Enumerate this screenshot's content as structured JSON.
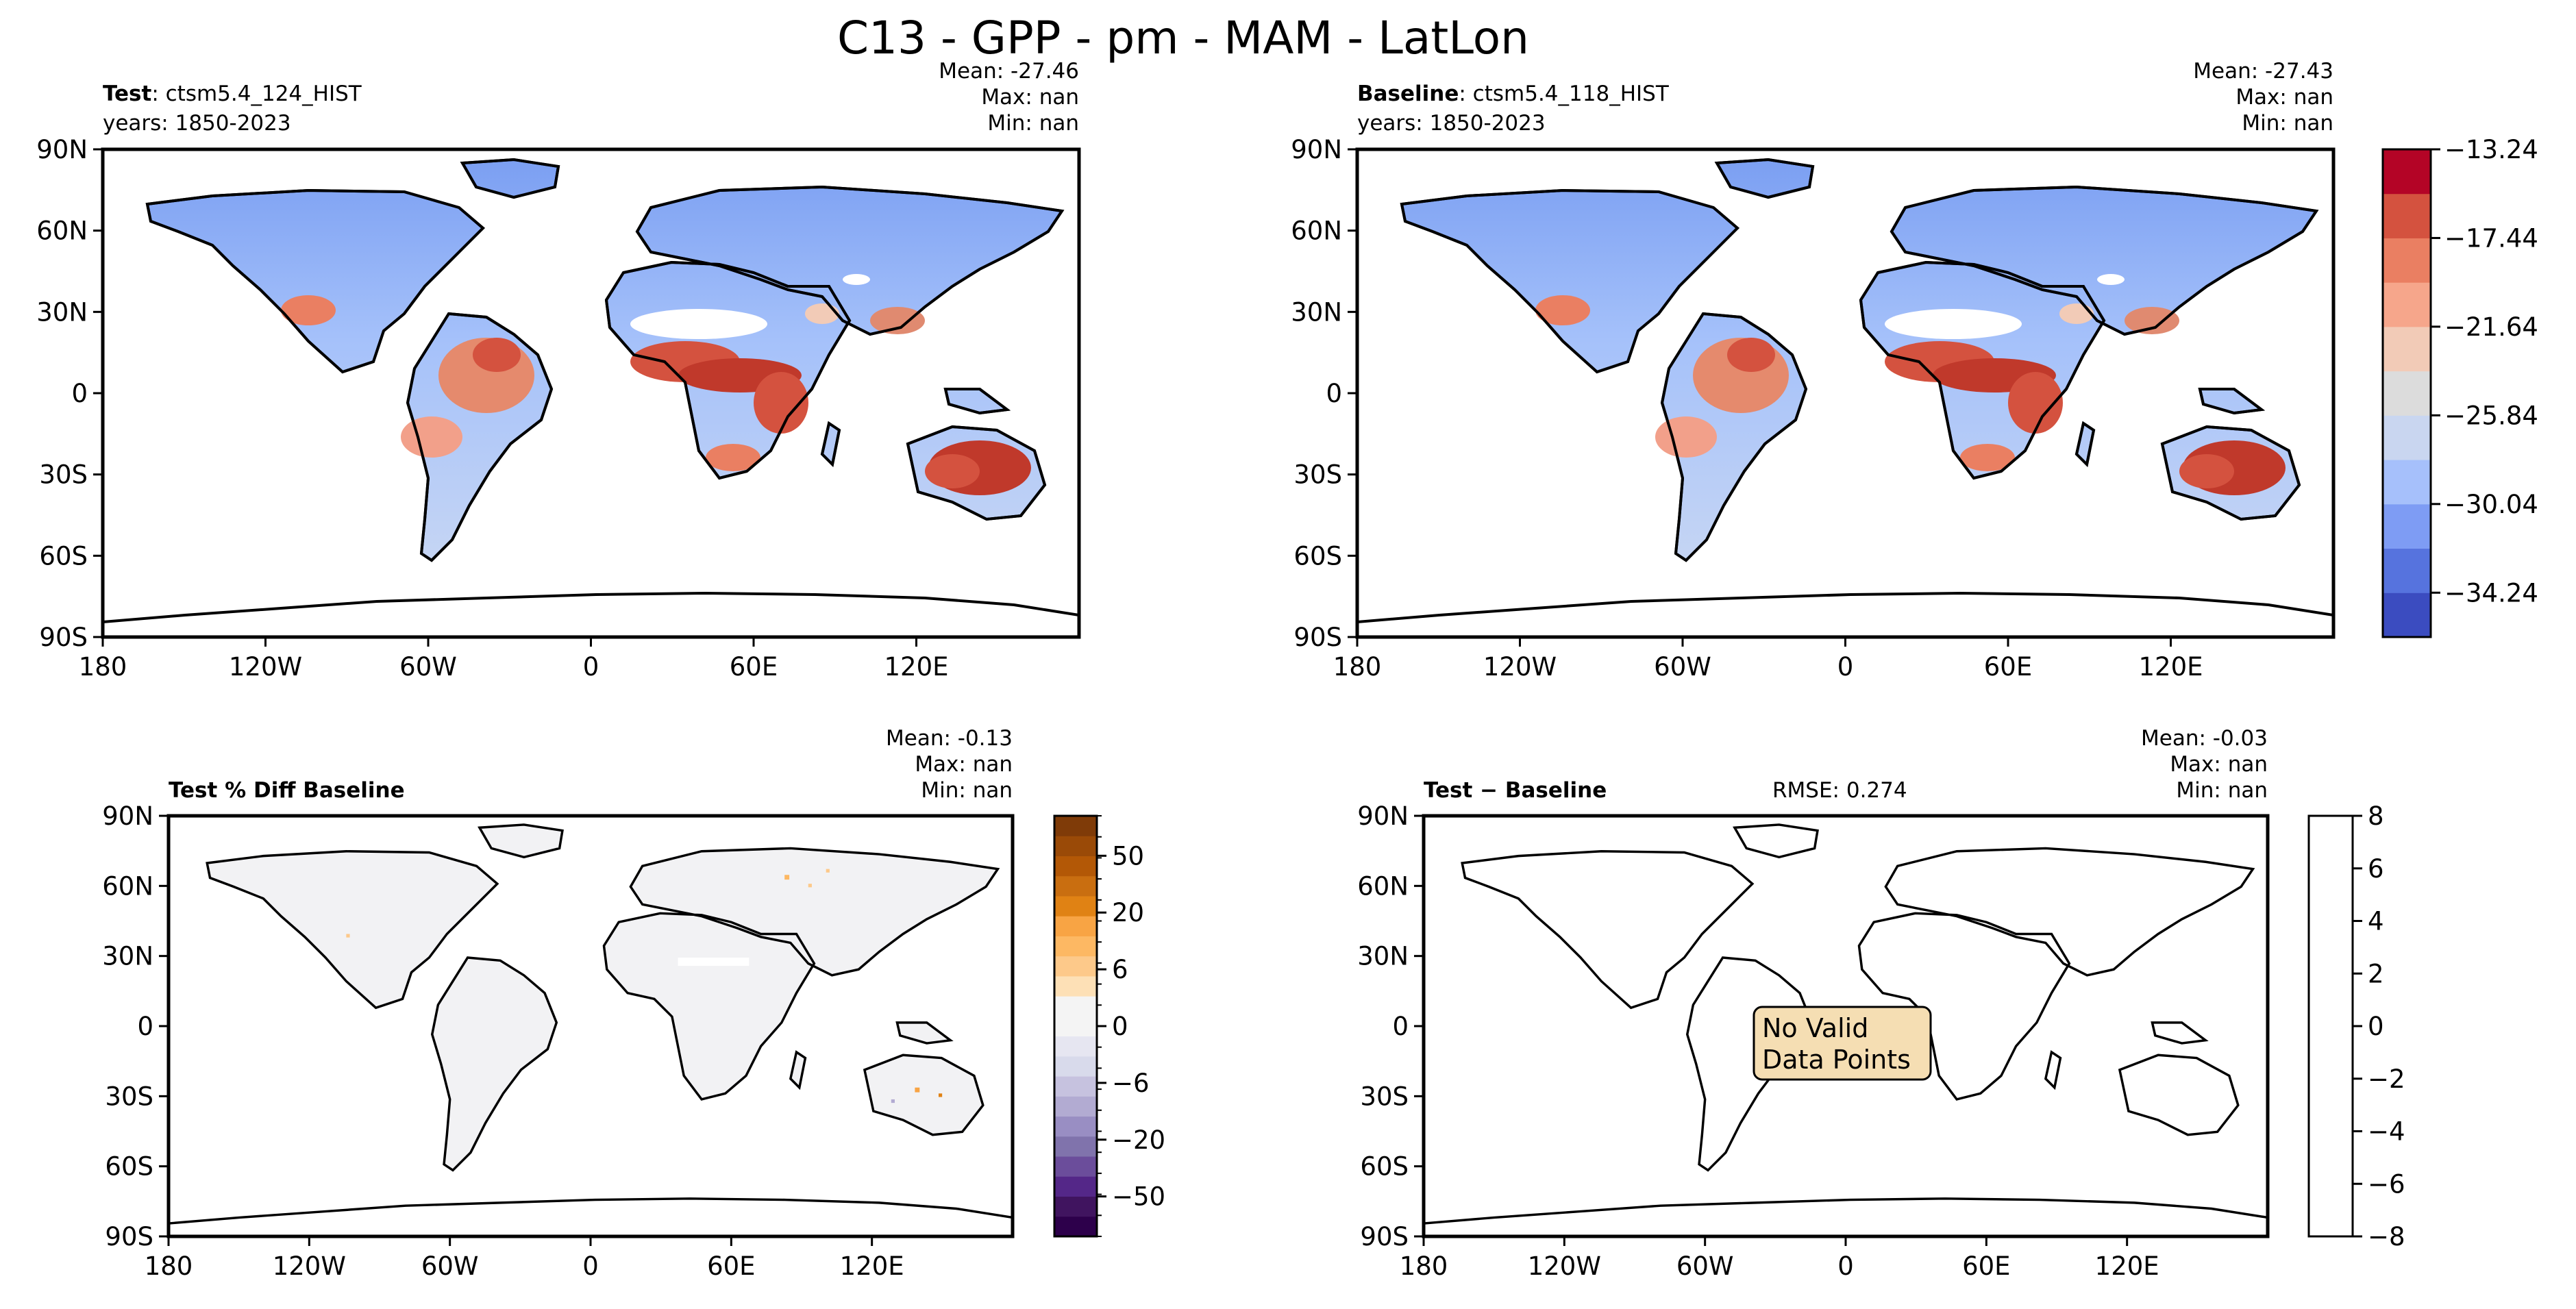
{
  "figure_title": "C13 - GPP - pm - MAM - LatLon",
  "lat_ticks": [
    "90N",
    "60N",
    "30N",
    "0",
    "30S",
    "60S",
    "90S"
  ],
  "lon_ticks": [
    "180",
    "120W",
    "60W",
    "0",
    "60E",
    "120E"
  ],
  "panels": {
    "test": {
      "label_bold": "Test",
      "label_rest": ": ctsm5.4_124_HIST",
      "years": "years: 1850-2023",
      "stats": {
        "mean": "Mean: -27.46",
        "max": "Max:   nan",
        "min": "Min:   nan"
      }
    },
    "baseline": {
      "label_bold": "Baseline",
      "label_rest": ": ctsm5.4_118_HIST",
      "years": "years: 1850-2023",
      "stats": {
        "mean": "Mean: -27.43",
        "max": "Max:   nan",
        "min": "Min:   nan"
      }
    },
    "pct_diff": {
      "label_bold": "Test % Diff Baseline",
      "stats": {
        "mean": "Mean: -0.13",
        "max": "Max:   nan",
        "min": "Min:   nan"
      }
    },
    "diff": {
      "label_bold": "Test − Baseline",
      "rmse": "RMSE: 0.274",
      "stats": {
        "mean": "Mean: -0.03",
        "max": "Max:   nan",
        "min": "Min:   nan"
      },
      "no_data_line1": "No Valid",
      "no_data_line2": "Data Points"
    }
  },
  "colorbars": {
    "main": {
      "labels": [
        "−13.24",
        "−17.44",
        "−21.64",
        "−25.84",
        "−30.04",
        "−34.24"
      ],
      "colors": [
        "#3b4cc0",
        "#5673de",
        "#7e9cf4",
        "#a6c0fb",
        "#c9d6f0",
        "#dcdcdc",
        "#f2cbb7",
        "#f6a68b",
        "#ea7f62",
        "#d4523f",
        "#b40426"
      ]
    },
    "pct": {
      "labels": [
        "50",
        "20",
        "6",
        "0",
        "−6",
        "−20",
        "−50"
      ],
      "colors": [
        "#2d004b",
        "#40145f",
        "#542788",
        "#6b4d9b",
        "#8073ac",
        "#998ec3",
        "#b2abd2",
        "#c6c2df",
        "#d8daeb",
        "#e6e6f1",
        "#f4f4f4",
        "#f4f4f4",
        "#fde0b6",
        "#fdc98a",
        "#fdb863",
        "#f8a444",
        "#e08214",
        "#c96e10",
        "#b35806",
        "#9a4a07",
        "#7f3b08"
      ]
    },
    "diff": {
      "labels": [
        "8",
        "6",
        "4",
        "2",
        "0",
        "−2",
        "−4",
        "−6",
        "−8"
      ]
    }
  },
  "chart_data": [
    {
      "type": "heatmap",
      "title": "Test: ctsm5.4_124_HIST",
      "subtitle": "years: 1850-2023",
      "mean": -27.46,
      "max": "nan",
      "min": "nan",
      "x_ticks": [
        "180",
        "120W",
        "60W",
        "0",
        "60E",
        "120E"
      ],
      "y_ticks": [
        "90N",
        "60N",
        "30N",
        "0",
        "30S",
        "60S",
        "90S"
      ],
      "xlim": [
        -180,
        180
      ],
      "ylim": [
        -90,
        90
      ],
      "color_scale": [
        -36.34,
        -13.24
      ],
      "colorbar_ticks": [
        -13.24,
        -17.44,
        -21.64,
        -25.84,
        -30.04,
        -34.24
      ]
    },
    {
      "type": "heatmap",
      "title": "Baseline: ctsm5.4_118_HIST",
      "subtitle": "years: 1850-2023",
      "mean": -27.43,
      "max": "nan",
      "min": "nan",
      "x_ticks": [
        "180",
        "120W",
        "60W",
        "0",
        "60E",
        "120E"
      ],
      "y_ticks": [
        "90N",
        "60N",
        "30N",
        "0",
        "30S",
        "60S",
        "90S"
      ],
      "xlim": [
        -180,
        180
      ],
      "ylim": [
        -90,
        90
      ],
      "color_scale": [
        -36.34,
        -13.24
      ],
      "colorbar_ticks": [
        -13.24,
        -17.44,
        -21.64,
        -25.84,
        -30.04,
        -34.24
      ]
    },
    {
      "type": "heatmap",
      "title": "Test % Diff Baseline",
      "mean": -0.13,
      "max": "nan",
      "min": "nan",
      "x_ticks": [
        "180",
        "120W",
        "60W",
        "0",
        "60E",
        "120E"
      ],
      "y_ticks": [
        "90N",
        "60N",
        "30N",
        "0",
        "30S",
        "60S",
        "90S"
      ],
      "xlim": [
        -180,
        180
      ],
      "ylim": [
        -90,
        90
      ],
      "colorbar_ticks": [
        50,
        20,
        6,
        0,
        -6,
        -20,
        -50
      ]
    },
    {
      "type": "heatmap",
      "title": "Test − Baseline",
      "rmse": 0.274,
      "mean": -0.03,
      "max": "nan",
      "min": "nan",
      "x_ticks": [
        "180",
        "120W",
        "60W",
        "0",
        "60E",
        "120E"
      ],
      "y_ticks": [
        "90N",
        "60N",
        "30N",
        "0",
        "30S",
        "60S",
        "90S"
      ],
      "xlim": [
        -180,
        180
      ],
      "ylim": [
        -90,
        90
      ],
      "colorbar_ticks": [
        8,
        6,
        4,
        2,
        0,
        -2,
        -4,
        -6,
        -8
      ],
      "annotation": "No Valid Data Points"
    }
  ]
}
